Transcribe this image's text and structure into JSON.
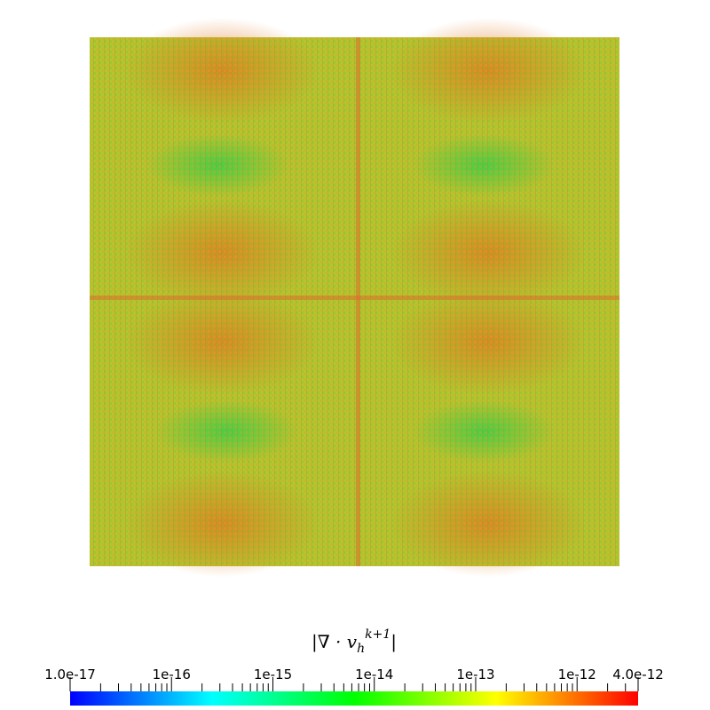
{
  "chart_data": {
    "type": "heatmap",
    "colorbar": {
      "title": {
        "base": "|∇ · v",
        "sub": "h",
        "sup": "k+1",
        "end": "|"
      },
      "clim": [
        1e-17,
        4e-12
      ],
      "log": true,
      "colormap": [
        "#0000ff",
        "#00ffff",
        "#00ff00",
        "#ffff00",
        "#ff0000"
      ],
      "ticks": [
        {
          "value": 1e-17,
          "label": "1.0e-17"
        },
        1e-16,
        1e-15,
        1e-14,
        1e-13,
        1e-12,
        {
          "value": 4e-12,
          "label": "4.0e-12"
        }
      ],
      "minor_ticks": [
        2e-17,
        3e-17,
        4e-17,
        5e-17,
        6e-17,
        7e-17,
        8e-17,
        9e-17,
        2e-16,
        3e-16,
        4e-16,
        5e-16,
        6e-16,
        7e-16,
        8e-16,
        9e-16,
        2e-15,
        3e-15,
        4e-15,
        5e-15,
        6e-15,
        7e-15,
        8e-15,
        9e-15,
        2e-14,
        3e-14,
        4e-14,
        5e-14,
        6e-14,
        7e-14,
        8e-14,
        9e-14,
        2e-13,
        3e-13,
        4e-13,
        5e-13,
        6e-13,
        7e-13,
        8e-13,
        9e-13,
        2e-12,
        3e-12
      ]
    }
  }
}
